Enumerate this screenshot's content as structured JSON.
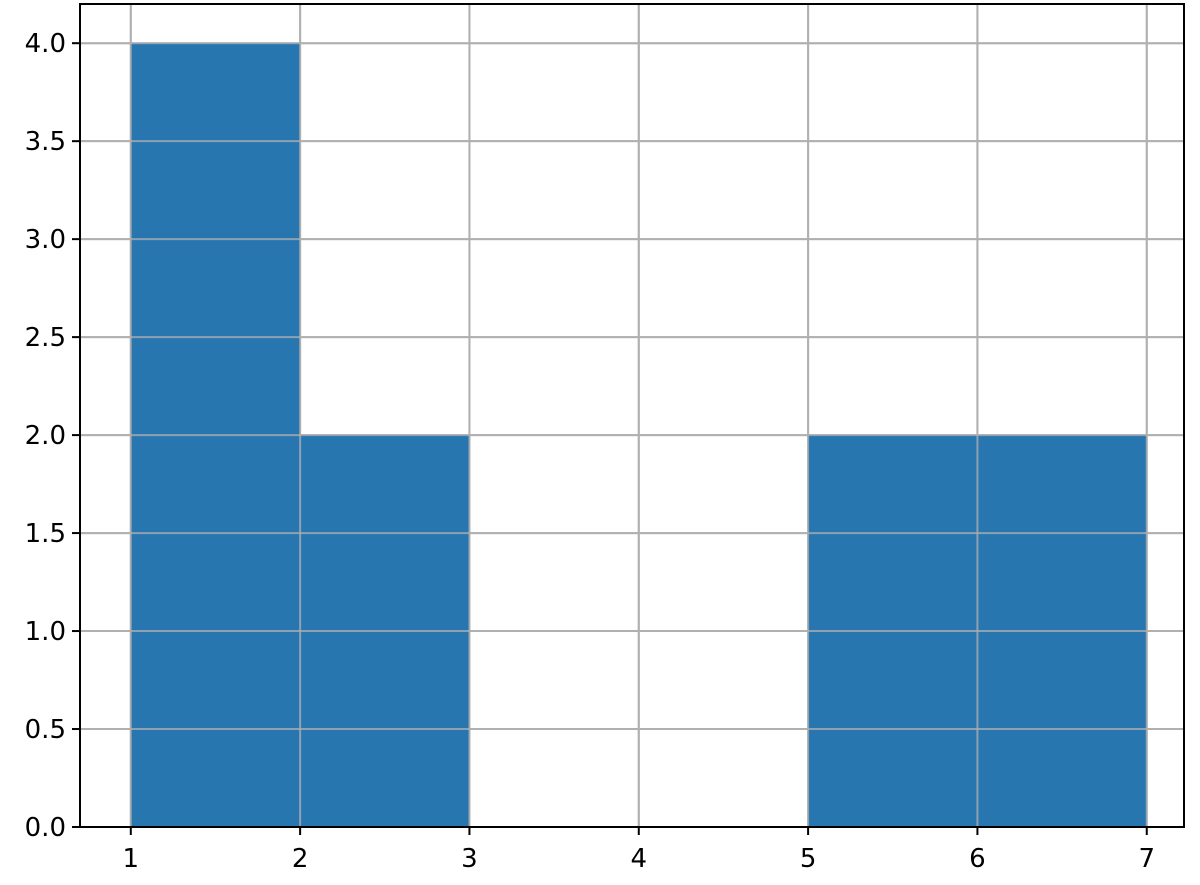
{
  "chart_data": {
    "type": "bar",
    "histogram": true,
    "bins": [
      {
        "x0": 1,
        "x1": 2,
        "value": 4
      },
      {
        "x0": 2,
        "x1": 3,
        "value": 2
      },
      {
        "x0": 3,
        "x1": 4,
        "value": 0
      },
      {
        "x0": 4,
        "x1": 5,
        "value": 0
      },
      {
        "x0": 5,
        "x1": 6,
        "value": 2
      },
      {
        "x0": 6,
        "x1": 7,
        "value": 2
      }
    ],
    "title": "",
    "xlabel": "",
    "ylabel": "",
    "xlim": [
      0.7,
      7.22
    ],
    "ylim": [
      0,
      4.2
    ],
    "x_ticks": [
      "1",
      "2",
      "3",
      "4",
      "5",
      "6",
      "7"
    ],
    "y_ticks": [
      "0.0",
      "0.5",
      "1.0",
      "1.5",
      "2.0",
      "2.5",
      "3.0",
      "3.5",
      "4.0"
    ],
    "grid": true,
    "bar_color": "#2776b0",
    "grid_color": "#b0b0b0"
  }
}
